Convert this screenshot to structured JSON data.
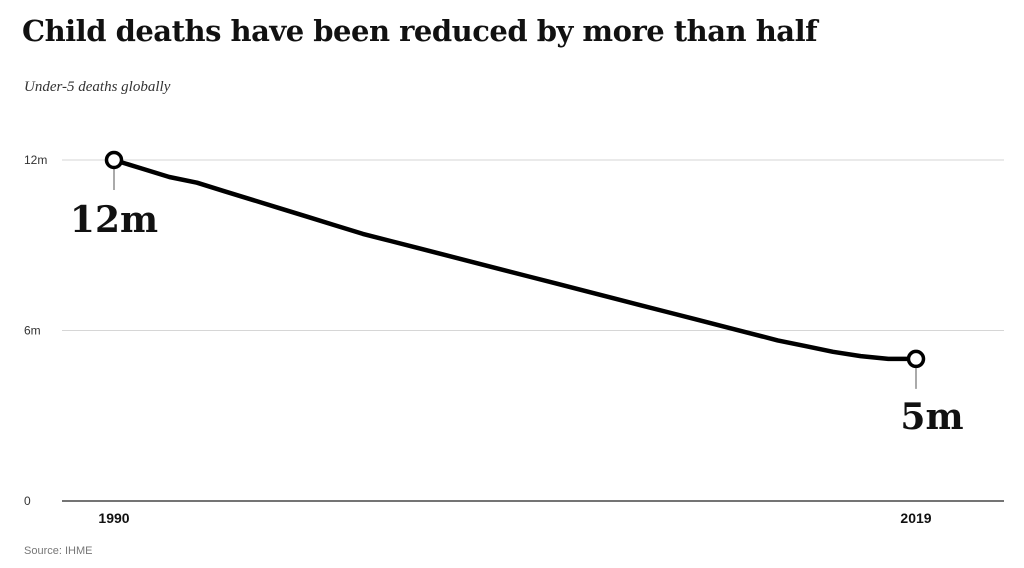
{
  "chart_data": {
    "type": "line",
    "title": "Child deaths have been reduced by more than half",
    "subtitle": "Under-5 deaths globally",
    "source": "Source: IHME",
    "x": [
      1990,
      1991,
      1992,
      1993,
      1994,
      1995,
      1996,
      1997,
      1998,
      1999,
      2000,
      2001,
      2002,
      2003,
      2004,
      2005,
      2006,
      2007,
      2008,
      2009,
      2010,
      2011,
      2012,
      2013,
      2014,
      2015,
      2016,
      2017,
      2018,
      2019
    ],
    "series": [
      {
        "values": [
          12.0,
          11.7,
          11.4,
          11.2,
          10.9,
          10.6,
          10.3,
          10.0,
          9.7,
          9.4,
          9.15,
          8.9,
          8.65,
          8.4,
          8.15,
          7.9,
          7.65,
          7.4,
          7.15,
          6.9,
          6.65,
          6.4,
          6.15,
          5.9,
          5.65,
          5.45,
          5.25,
          5.1,
          5.0,
          5.0
        ]
      }
    ],
    "yticks": [
      {
        "value": 12,
        "label": "12m"
      },
      {
        "value": 6,
        "label": "6m"
      },
      {
        "value": 0,
        "label": "0"
      }
    ],
    "xticks": [
      {
        "value": 1990,
        "label": "1990"
      },
      {
        "value": 2019,
        "label": "2019"
      }
    ],
    "ylim": [
      0,
      12
    ],
    "annotations": [
      {
        "x": 1990,
        "y": 12,
        "label": "12m"
      },
      {
        "x": 2019,
        "y": 5,
        "label": "5m"
      }
    ],
    "grid": true
  }
}
